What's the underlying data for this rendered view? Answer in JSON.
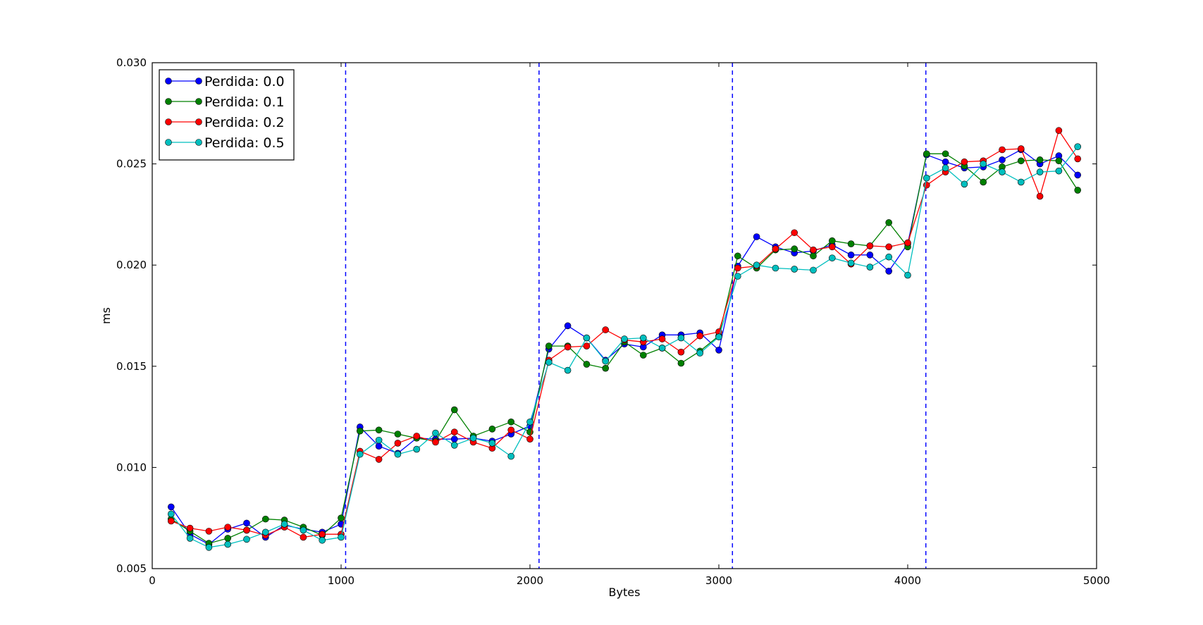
{
  "chart_data": {
    "type": "line",
    "xlabel": "Bytes",
    "ylabel": "ms",
    "xlim": [
      0,
      5000
    ],
    "ylim": [
      0.005,
      0.03
    ],
    "xticks": [
      0,
      1000,
      2000,
      3000,
      4000,
      5000
    ],
    "xtick_labels": [
      "0",
      "1000",
      "2000",
      "3000",
      "4000",
      "5000"
    ],
    "yticks": [
      0.005,
      0.01,
      0.015,
      0.02,
      0.025,
      0.03
    ],
    "ytick_labels": [
      "0.005",
      "0.010",
      "0.015",
      "0.020",
      "0.025",
      "0.030"
    ],
    "grid": false,
    "legend_position": "top-left",
    "vlines": [
      1024,
      2048,
      3072,
      4096
    ],
    "vline_color": "#0000ff",
    "x": [
      100,
      200,
      300,
      400,
      500,
      600,
      700,
      800,
      900,
      1000,
      1100,
      1200,
      1300,
      1400,
      1500,
      1600,
      1700,
      1800,
      1900,
      2000,
      2100,
      2200,
      2300,
      2400,
      2500,
      2600,
      2700,
      2800,
      2900,
      3000,
      3100,
      3200,
      3300,
      3400,
      3500,
      3600,
      3700,
      3800,
      3900,
      4000,
      4100,
      4200,
      4300,
      4400,
      4500,
      4600,
      4700,
      4800,
      4900
    ],
    "series": [
      {
        "name": "Perdida: 0.0",
        "color": "#0000ff",
        "values": [
          0.00805,
          0.0067,
          0.0062,
          0.00695,
          0.00725,
          0.00655,
          0.00715,
          0.00695,
          0.0068,
          0.0072,
          0.012,
          0.01105,
          0.0107,
          0.01145,
          0.0114,
          0.0114,
          0.01145,
          0.0113,
          0.01165,
          0.01205,
          0.01585,
          0.017,
          0.0164,
          0.0153,
          0.0161,
          0.01595,
          0.01655,
          0.01655,
          0.01665,
          0.0158,
          0.01995,
          0.0214,
          0.0209,
          0.0206,
          0.0207,
          0.021,
          0.0205,
          0.0205,
          0.0197,
          0.02105,
          0.02545,
          0.0251,
          0.0248,
          0.02485,
          0.0252,
          0.0257,
          0.025,
          0.0254,
          0.02445
        ]
      },
      {
        "name": "Perdida: 0.1",
        "color": "#008000",
        "values": [
          0.00745,
          0.00685,
          0.00625,
          0.0065,
          0.0069,
          0.00745,
          0.0074,
          0.00705,
          0.00665,
          0.0075,
          0.0118,
          0.01185,
          0.01165,
          0.01145,
          0.0113,
          0.01285,
          0.01155,
          0.0119,
          0.01225,
          0.01175,
          0.016,
          0.016,
          0.0151,
          0.0149,
          0.0162,
          0.01555,
          0.0159,
          0.01515,
          0.01575,
          0.0165,
          0.02045,
          0.01985,
          0.02075,
          0.0208,
          0.02045,
          0.0212,
          0.02105,
          0.02095,
          0.0221,
          0.0209,
          0.0255,
          0.0255,
          0.0249,
          0.0241,
          0.02485,
          0.02515,
          0.0252,
          0.02515,
          0.0237
        ]
      },
      {
        "name": "Perdida: 0.2",
        "color": "#ff0000",
        "values": [
          0.00735,
          0.007,
          0.00685,
          0.00705,
          0.0069,
          0.00665,
          0.00705,
          0.00655,
          0.0067,
          0.0067,
          0.0108,
          0.0104,
          0.0112,
          0.01155,
          0.01125,
          0.01175,
          0.01125,
          0.01095,
          0.01185,
          0.0114,
          0.0153,
          0.01595,
          0.016,
          0.0168,
          0.0163,
          0.0162,
          0.01635,
          0.0157,
          0.0165,
          0.0167,
          0.01985,
          0.01995,
          0.0208,
          0.0216,
          0.02075,
          0.0209,
          0.02005,
          0.02095,
          0.0209,
          0.0211,
          0.02395,
          0.0246,
          0.0251,
          0.02515,
          0.0257,
          0.02575,
          0.0234,
          0.02665,
          0.02525
        ]
      },
      {
        "name": "Perdida: 0.5",
        "color": "#00bfbf",
        "values": [
          0.0077,
          0.0065,
          0.00605,
          0.0062,
          0.00645,
          0.0068,
          0.0072,
          0.0069,
          0.0064,
          0.00655,
          0.01065,
          0.01135,
          0.01065,
          0.0109,
          0.0117,
          0.0111,
          0.01145,
          0.0112,
          0.01055,
          0.01225,
          0.0152,
          0.0148,
          0.0164,
          0.01525,
          0.01635,
          0.0164,
          0.0159,
          0.0164,
          0.01565,
          0.01645,
          0.01945,
          0.02,
          0.01985,
          0.0198,
          0.01975,
          0.02035,
          0.0201,
          0.0199,
          0.0204,
          0.0195,
          0.0243,
          0.0248,
          0.024,
          0.025,
          0.0246,
          0.0241,
          0.0246,
          0.02465,
          0.02585
        ]
      }
    ]
  }
}
